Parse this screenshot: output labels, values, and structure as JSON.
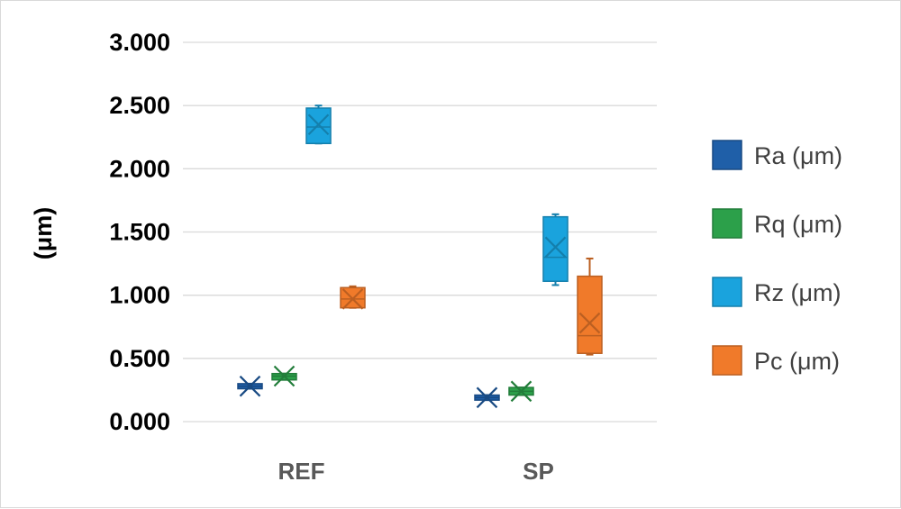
{
  "chart_data": {
    "type": "box",
    "ylabel": "(μm)",
    "ylim": [
      0,
      3
    ],
    "yticks": [
      "0.000",
      "0.500",
      "1.000",
      "1.500",
      "2.000",
      "2.500",
      "3.000"
    ],
    "categories": [
      "REF",
      "SP"
    ],
    "grid": true,
    "legend_position": "right",
    "series": [
      {
        "name": "Ra (μm)",
        "color": "#1f5fa8",
        "boxes": [
          {
            "category": "REF",
            "min": 0.26,
            "q1": 0.26,
            "median": 0.28,
            "q3": 0.3,
            "max": 0.3,
            "mean": 0.28
          },
          {
            "category": "SP",
            "min": 0.17,
            "q1": 0.17,
            "median": 0.19,
            "q3": 0.21,
            "max": 0.21,
            "mean": 0.19
          }
        ]
      },
      {
        "name": "Rq (μm)",
        "color": "#2ca04a",
        "boxes": [
          {
            "category": "REF",
            "min": 0.33,
            "q1": 0.33,
            "median": 0.36,
            "q3": 0.38,
            "max": 0.38,
            "mean": 0.36
          },
          {
            "category": "SP",
            "min": 0.21,
            "q1": 0.21,
            "median": 0.24,
            "q3": 0.27,
            "max": 0.27,
            "mean": 0.24
          }
        ]
      },
      {
        "name": "Rz (μm)",
        "color": "#1aa3dd",
        "boxes": [
          {
            "category": "REF",
            "min": 2.2,
            "q1": 2.2,
            "median": 2.33,
            "q3": 2.48,
            "max": 2.5,
            "mean": 2.35
          },
          {
            "category": "SP",
            "min": 1.08,
            "q1": 1.11,
            "median": 1.3,
            "q3": 1.62,
            "max": 1.64,
            "mean": 1.38
          }
        ]
      },
      {
        "name": "Pc (μm)",
        "color": "#f07a2a",
        "boxes": [
          {
            "category": "REF",
            "min": 0.9,
            "q1": 0.9,
            "median": 0.97,
            "q3": 1.06,
            "max": 1.07,
            "mean": 0.97
          },
          {
            "category": "SP",
            "min": 0.53,
            "q1": 0.54,
            "median": 0.68,
            "q3": 1.15,
            "max": 1.29,
            "mean": 0.78
          }
        ]
      }
    ]
  }
}
